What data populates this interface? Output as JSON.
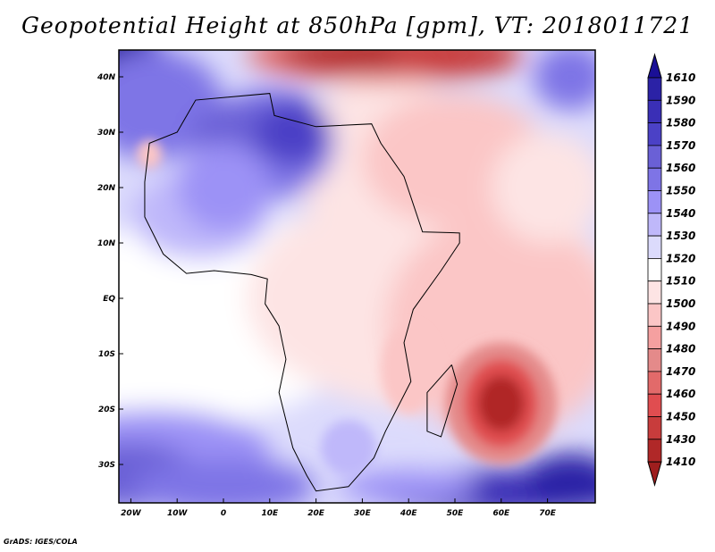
{
  "title": "Geopotential Height at 850hPa [gpm], VT: 2018011721",
  "footer": "GrADS: IGES/COLA",
  "x_ticks": [
    "20W",
    "10W",
    "0",
    "10E",
    "20E",
    "30E",
    "40E",
    "50E",
    "60E",
    "70E"
  ],
  "x_tick_values": [
    -20,
    -10,
    0,
    10,
    20,
    30,
    40,
    50,
    60,
    70
  ],
  "y_ticks": [
    "40N",
    "30N",
    "20N",
    "10N",
    "EQ",
    "10S",
    "20S",
    "30S"
  ],
  "y_tick_values": [
    40,
    30,
    20,
    10,
    0,
    -10,
    -20,
    -30
  ],
  "colorbar": {
    "labels": [
      "1610",
      "1590",
      "1580",
      "1570",
      "1560",
      "1550",
      "1540",
      "1530",
      "1520",
      "1510",
      "1500",
      "1490",
      "1480",
      "1470",
      "1460",
      "1450",
      "1430",
      "1410"
    ],
    "colors": [
      "#1a0f96",
      "#2b22a6",
      "#3a2fb6",
      "#4b41c6",
      "#6a60d6",
      "#7e74e6",
      "#9c92f6",
      "#bfb8fa",
      "#dcdbfc",
      "#ffffff",
      "#fde4e4",
      "#fbc6c6",
      "#f5a0a0",
      "#e48a8a",
      "#e26a6a",
      "#e04d50",
      "#c83c3c",
      "#b02828",
      "#9e1e1e"
    ]
  }
}
